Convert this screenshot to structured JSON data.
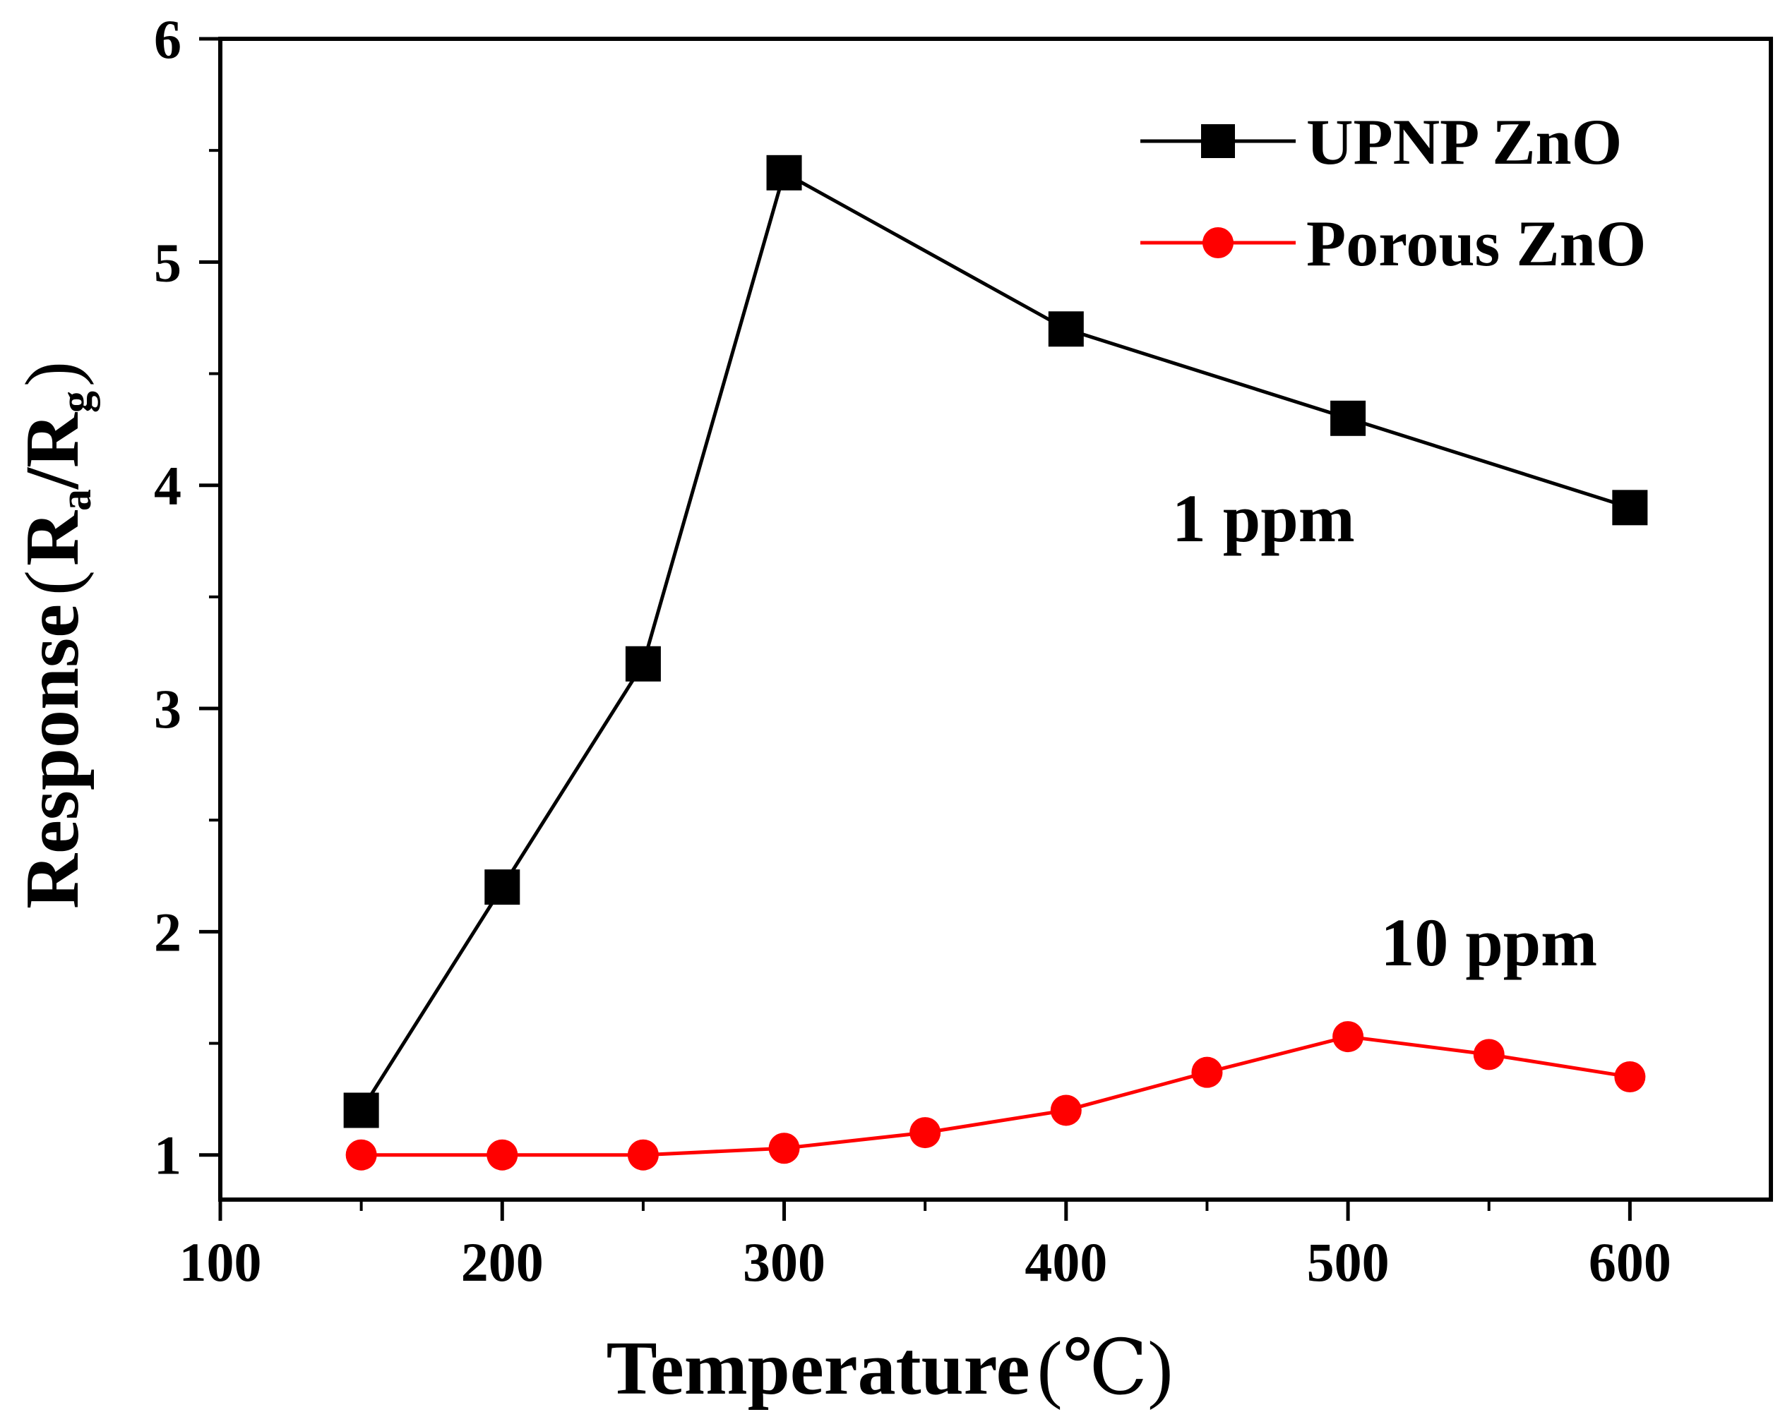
{
  "chart_data": {
    "type": "line",
    "title": "",
    "xlabel": "Temperature",
    "xlabel_unit": "(℃)",
    "ylabel_main": "Response",
    "ylabel_unit_parts": [
      "(",
      "R",
      "a",
      "/R",
      "g",
      ")"
    ],
    "xlim": [
      100,
      650
    ],
    "ylim": [
      0.8,
      6
    ],
    "xticks": [
      100,
      200,
      300,
      400,
      500,
      600
    ],
    "yticks": [
      1,
      2,
      3,
      4,
      5,
      6
    ],
    "grid": false,
    "legend_position": "top-right",
    "series": [
      {
        "name": "UPNP ZnO",
        "color": "#000000",
        "marker": "square",
        "x": [
          150,
          200,
          250,
          300,
          400,
          500,
          600
        ],
        "y": [
          1.2,
          2.2,
          3.2,
          5.4,
          4.7,
          4.3,
          3.9
        ]
      },
      {
        "name": "Porous ZnO",
        "color": "#ff0000",
        "marker": "circle",
        "x": [
          150,
          200,
          250,
          300,
          350,
          400,
          450,
          500,
          550,
          600
        ],
        "y": [
          1.0,
          1.0,
          1.0,
          1.03,
          1.1,
          1.2,
          1.37,
          1.53,
          1.45,
          1.35
        ]
      }
    ],
    "annotations": [
      {
        "text": "1 ppm",
        "x": 470,
        "y": 3.75
      },
      {
        "text": "10 ppm",
        "x": 550,
        "y": 1.85
      }
    ]
  }
}
